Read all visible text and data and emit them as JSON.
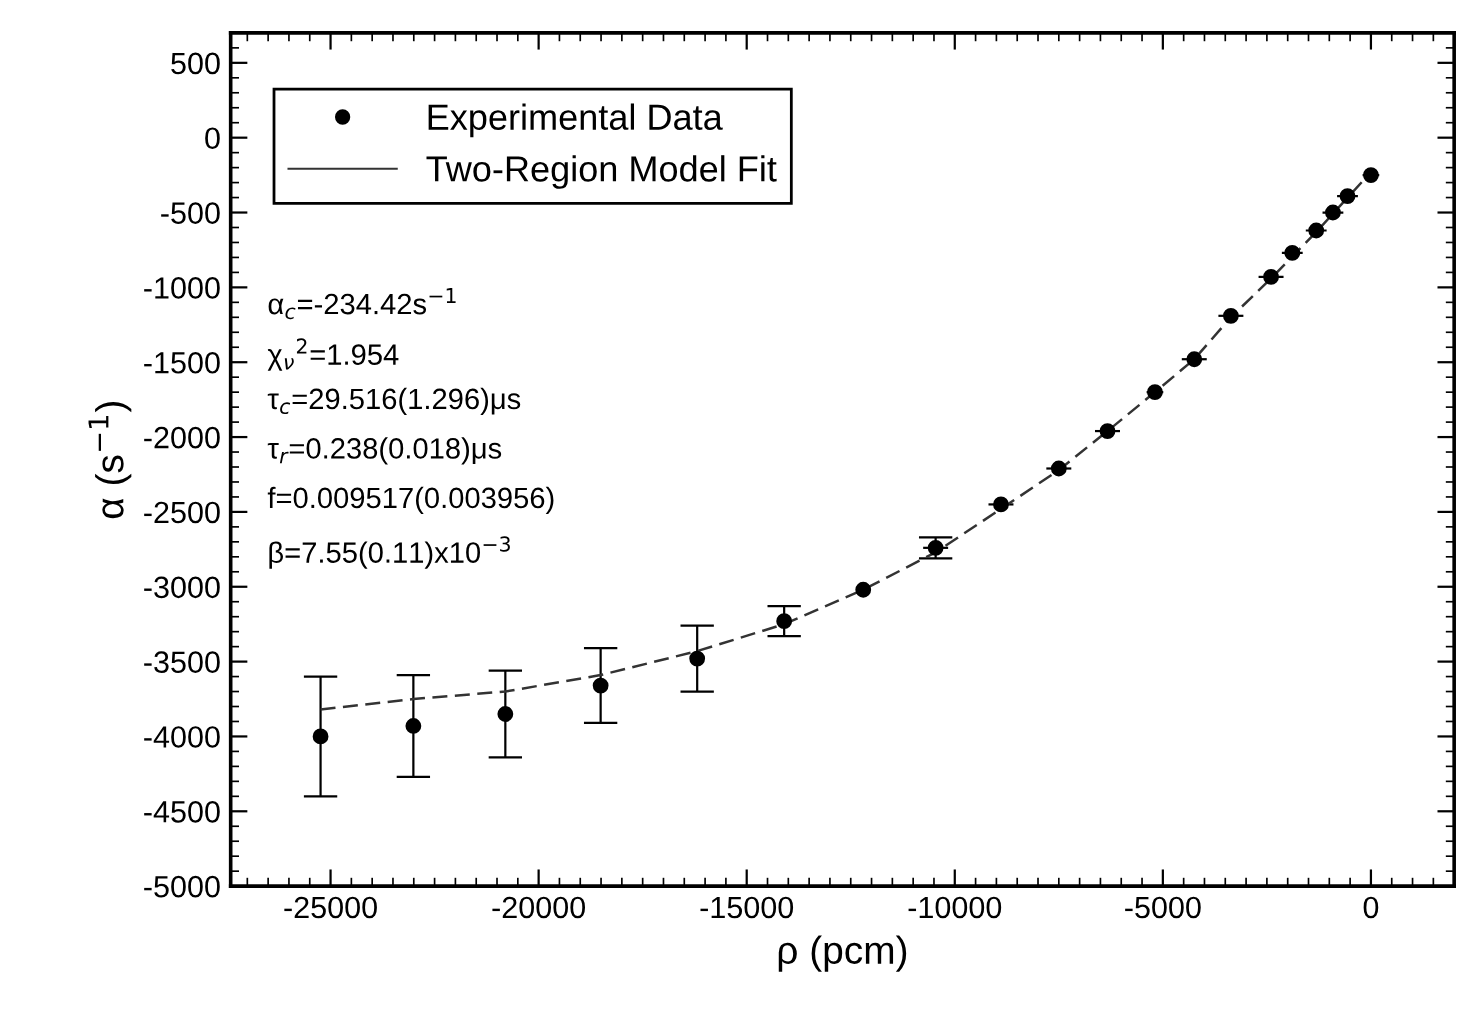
{
  "chart_data": {
    "type": "scatter",
    "xlabel": "ρ (pcm)",
    "ylabel": "α (s$^{−1}$)",
    "xlim": [
      -27400,
      2000
    ],
    "xticks": [
      -25000,
      -20000,
      -15000,
      -10000,
      -5000,
      0
    ],
    "ylim": [
      -5000,
      700
    ],
    "yticks": [
      500,
      0,
      -500,
      -1000,
      -1500,
      -2000,
      -2500,
      -3000,
      -3500,
      -4000,
      -4500,
      -5000
    ],
    "grid": false,
    "legend": "top left",
    "series": [
      {
        "name": "Experimental Data",
        "color": "#000000",
        "marker": "circle",
        "x": [
          -25240,
          -23010,
          -20800,
          -18510,
          -16190,
          -14100,
          -12200,
          -10460,
          -8890,
          -7500,
          -6330,
          -5190,
          -4245,
          -3365,
          -2400,
          -1890,
          -1315,
          -913,
          -563,
          0
        ],
        "values": [
          -4000,
          -3930,
          -3850,
          -3660,
          -3480,
          -3230,
          -3020,
          -2740,
          -2450,
          -2210,
          -1960,
          -1700,
          -1480,
          -1190,
          -930,
          -770,
          -620,
          -500,
          -390,
          -250
        ],
        "errors": [
          400,
          340,
          290,
          250,
          220,
          100,
          null,
          70,
          null,
          null,
          null,
          null,
          null,
          null,
          null,
          null,
          null,
          null,
          null,
          null
        ],
        "xerrors": [
          null,
          null,
          null,
          null,
          null,
          null,
          null,
          300,
          300,
          300,
          300,
          200,
          300,
          300,
          300,
          250,
          250,
          250,
          250,
          200
        ]
      },
      {
        "name": "Two-Region Model Fit",
        "type": "line",
        "color": "#333333",
        "line_style": "dashed",
        "marker": "none",
        "x": [
          -25240,
          -23010,
          -20800,
          -18510,
          -16190,
          -14100,
          -12200,
          -10460,
          -8890,
          -7500,
          -6330,
          -5190,
          -4245,
          -3365,
          -2400,
          -1315,
          0
        ],
        "values": [
          -3820,
          -3750,
          -3700,
          -3590,
          -3430,
          -3250,
          -3020,
          -2770,
          -2480,
          -2220,
          -1960,
          -1700,
          -1480,
          -1200,
          -940,
          -630,
          -230
        ]
      }
    ],
    "annotations": [
      "α$_{c}$=-234.42s$^{−1}$",
      "χ$_{ν}$$^{2}$=1.954",
      "τ$_{c}$=29.516(1.296)μs",
      "τ$_{r}$=0.238(0.018)μs",
      "f=0.009517(0.003956)",
      "β=7.55(0.11)x10$^{−3}$"
    ]
  }
}
